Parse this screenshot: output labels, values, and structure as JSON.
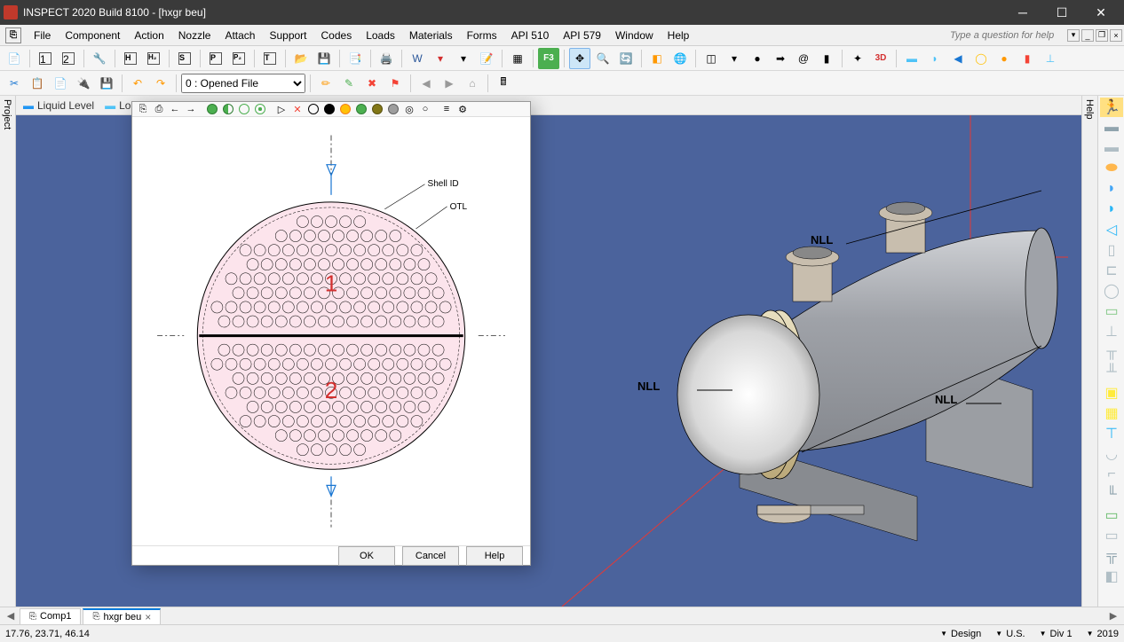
{
  "title": "INSPECT 2020 Build 8100 - [hxgr beu]",
  "menu": [
    "File",
    "Component",
    "Action",
    "Nozzle",
    "Attach",
    "Support",
    "Codes",
    "Loads",
    "Materials",
    "Forms",
    "API 510",
    "API 579",
    "Window",
    "Help"
  ],
  "question_placeholder": "Type a question for help",
  "toolbar2": {
    "dropdown": "0 : Opened File"
  },
  "canvas_top": {
    "liquid": "Liquid Level",
    "seams": "Long Seams"
  },
  "left_panel": "Project",
  "right_panel": "Help",
  "dialog": {
    "shell_id": "Shell ID",
    "otl": "OTL",
    "pass1": "1",
    "pass2": "2",
    "ok": "OK",
    "cancel": "Cancel",
    "help": "Help",
    "tubesheet": {
      "shell_radius": 150,
      "tube_radius": 6.5,
      "pitch": 16,
      "fill_color": "#fce4ec",
      "stroke_color": "#000000",
      "pass_label_color": "#d32f2f"
    }
  },
  "view3d": {
    "bg": "#4b639c",
    "nll": "NLL",
    "shell_color": "#b0b3b8",
    "head_color": "#e8e8e8",
    "flange_color": "#d4c9a8",
    "axis_red": "#e53935"
  },
  "tabs": [
    {
      "label": "Comp1",
      "active": false,
      "closable": false
    },
    {
      "label": "hxgr beu",
      "active": true,
      "closable": true
    }
  ],
  "status": {
    "coords": "17.76, 23.71, 46.14",
    "design": "Design",
    "units": "U.S.",
    "div": "Div 1",
    "year": "2019"
  },
  "colors": {
    "green": "#4caf50",
    "yellow": "#ffc107",
    "red": "#f44336",
    "blue": "#2196f3",
    "orange": "#ff9800",
    "purple": "#9c27b0",
    "teal": "#009688",
    "brown": "#795548",
    "grey": "#9e9e9e"
  }
}
